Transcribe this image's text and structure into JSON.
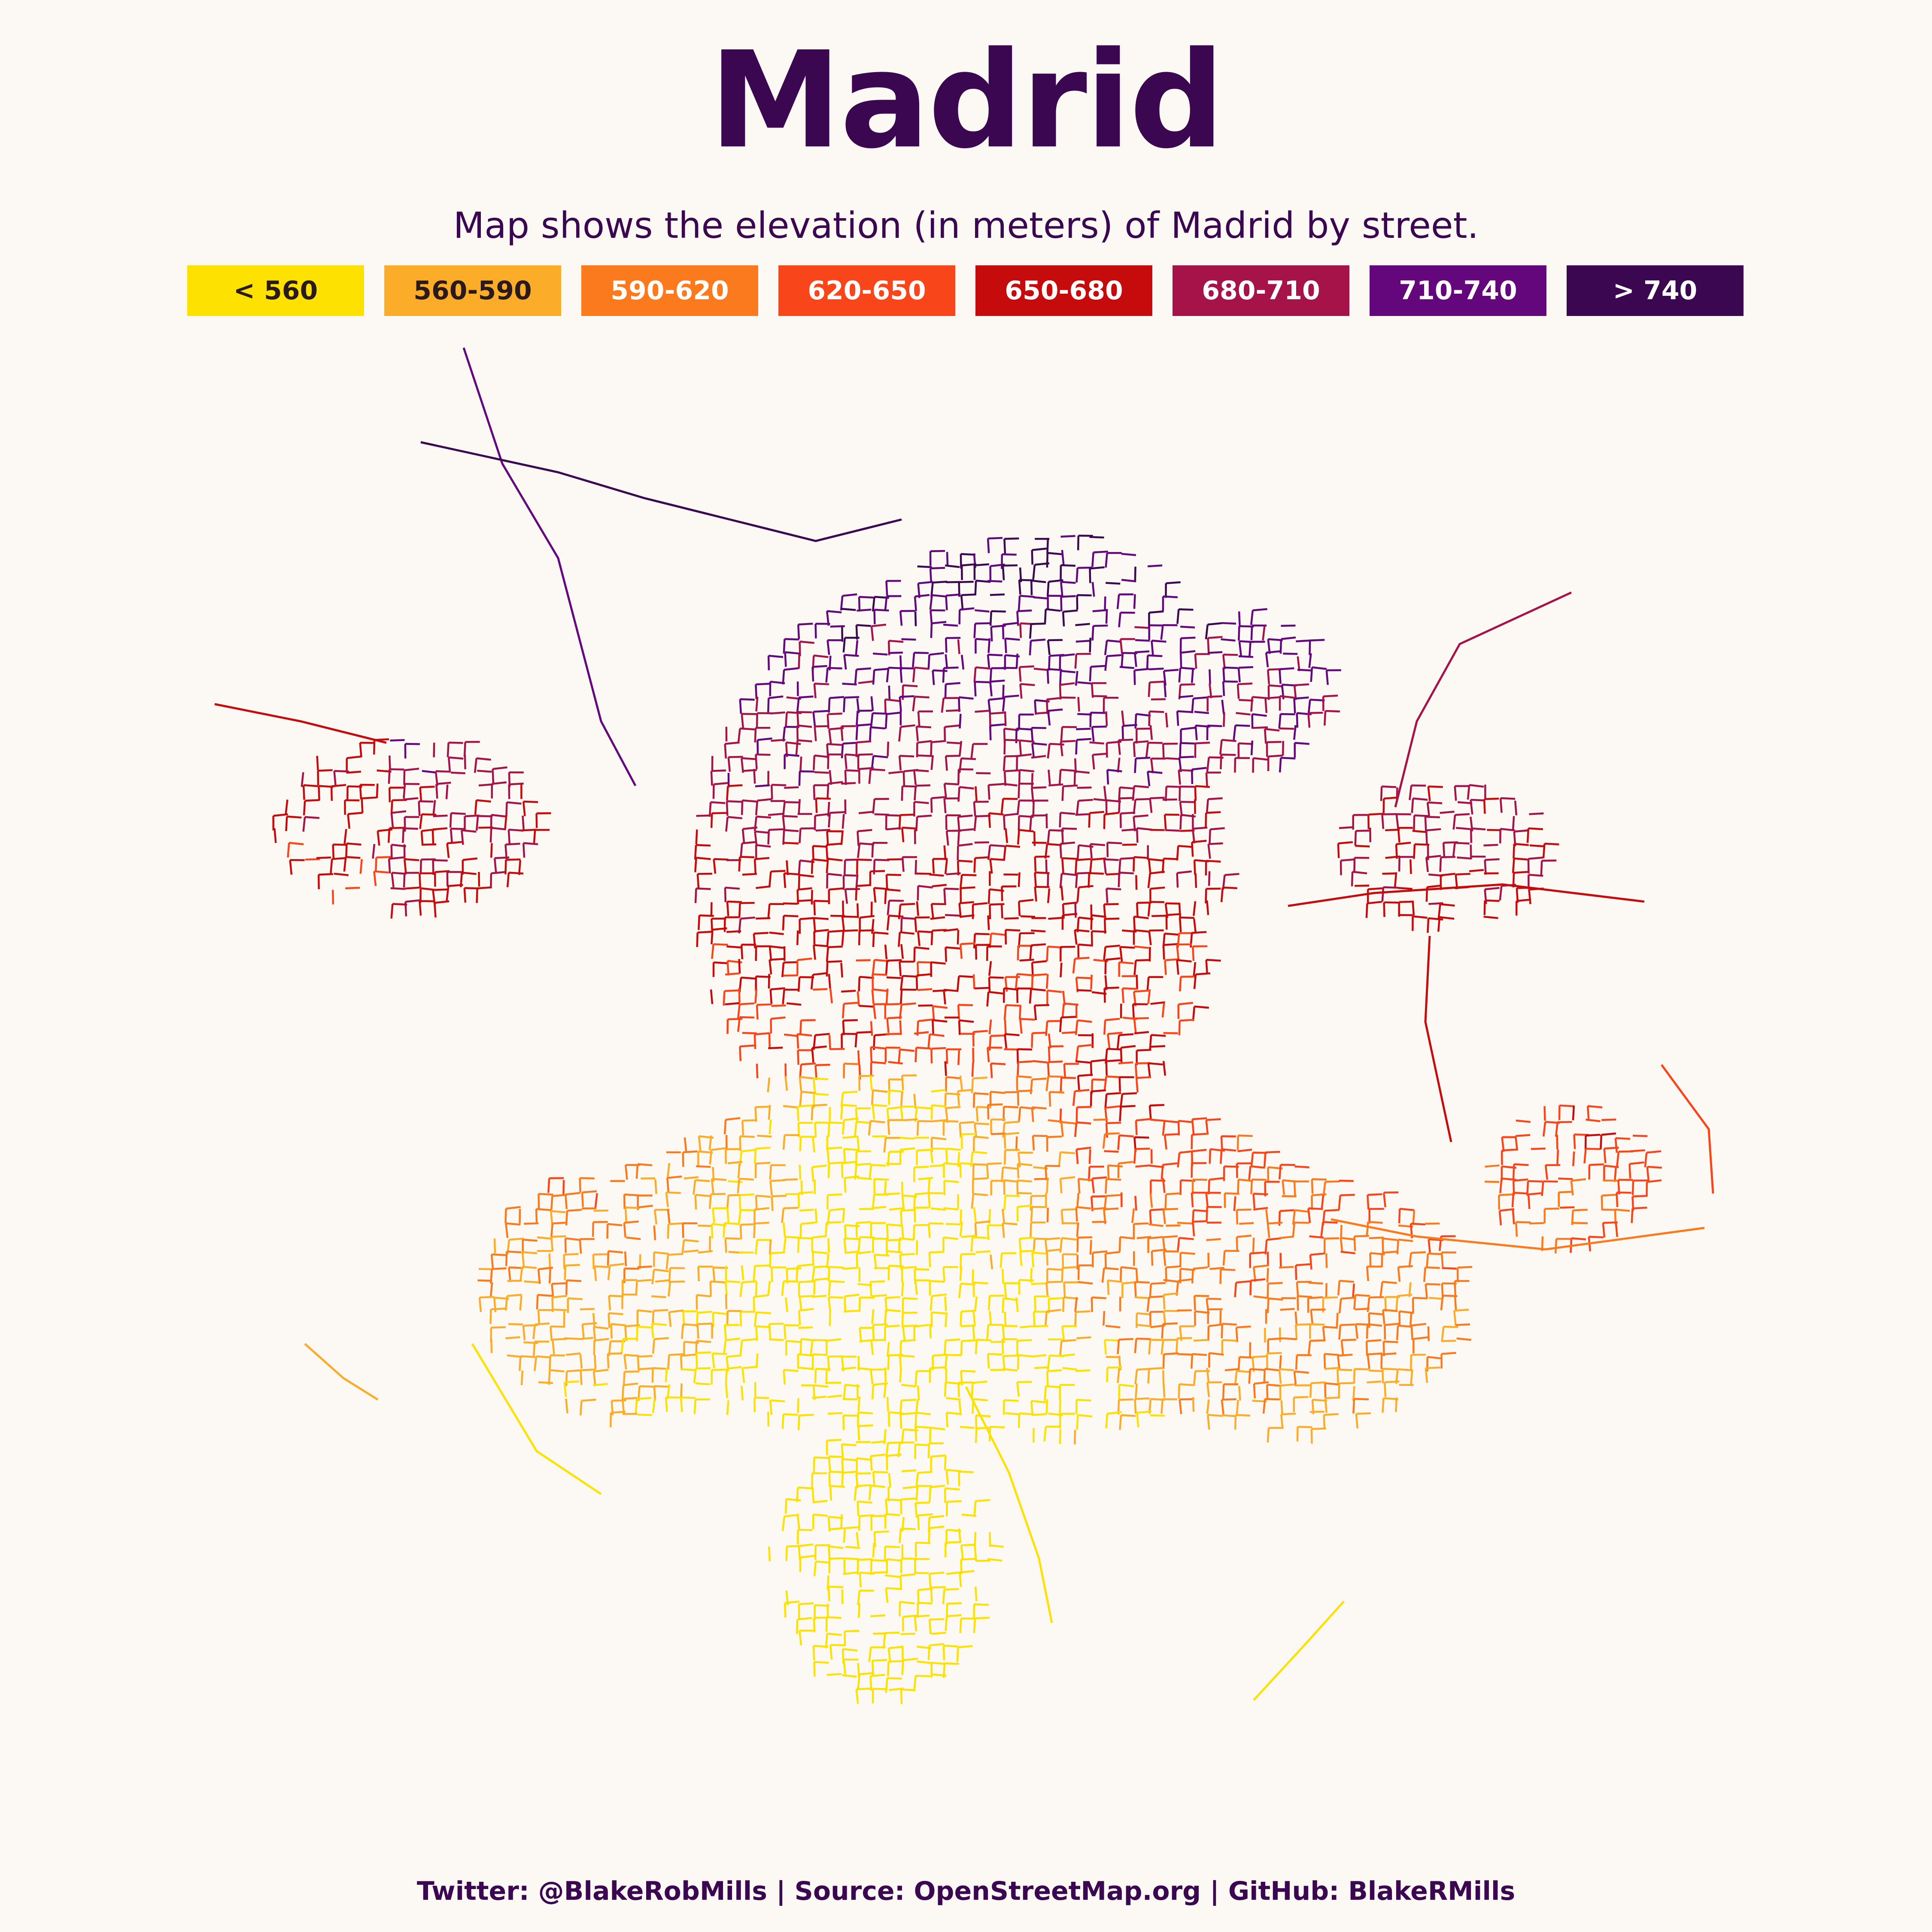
{
  "title": "Madrid",
  "subtitle": "Map shows the elevation (in meters) of Madrid by street.",
  "legend": [
    {
      "label": "< 560",
      "color": "#fde100",
      "text_color": "#2a1a1a"
    },
    {
      "label": "560-590",
      "color": "#fbad2a",
      "text_color": "#2a1a1a"
    },
    {
      "label": "590-620",
      "color": "#fb7a1e",
      "text_color": "#ffffff"
    },
    {
      "label": "620-650",
      "color": "#f8451a",
      "text_color": "#ffffff"
    },
    {
      "label": "650-680",
      "color": "#c60b0c",
      "text_color": "#ffffff"
    },
    {
      "label": "680-710",
      "color": "#a51348",
      "text_color": "#ffffff"
    },
    {
      "label": "710-740",
      "color": "#64077c",
      "text_color": "#ffffff"
    },
    {
      "label": "> 740",
      "color": "#3b0750",
      "text_color": "#ffffff"
    }
  ],
  "footer": "Twitter: @BlakeRobMills | Source: OpenStreetMap.org | GitHub: BlakeRMills",
  "colors": {
    "background": "#fcf9f5",
    "title": "#3b0750"
  }
}
